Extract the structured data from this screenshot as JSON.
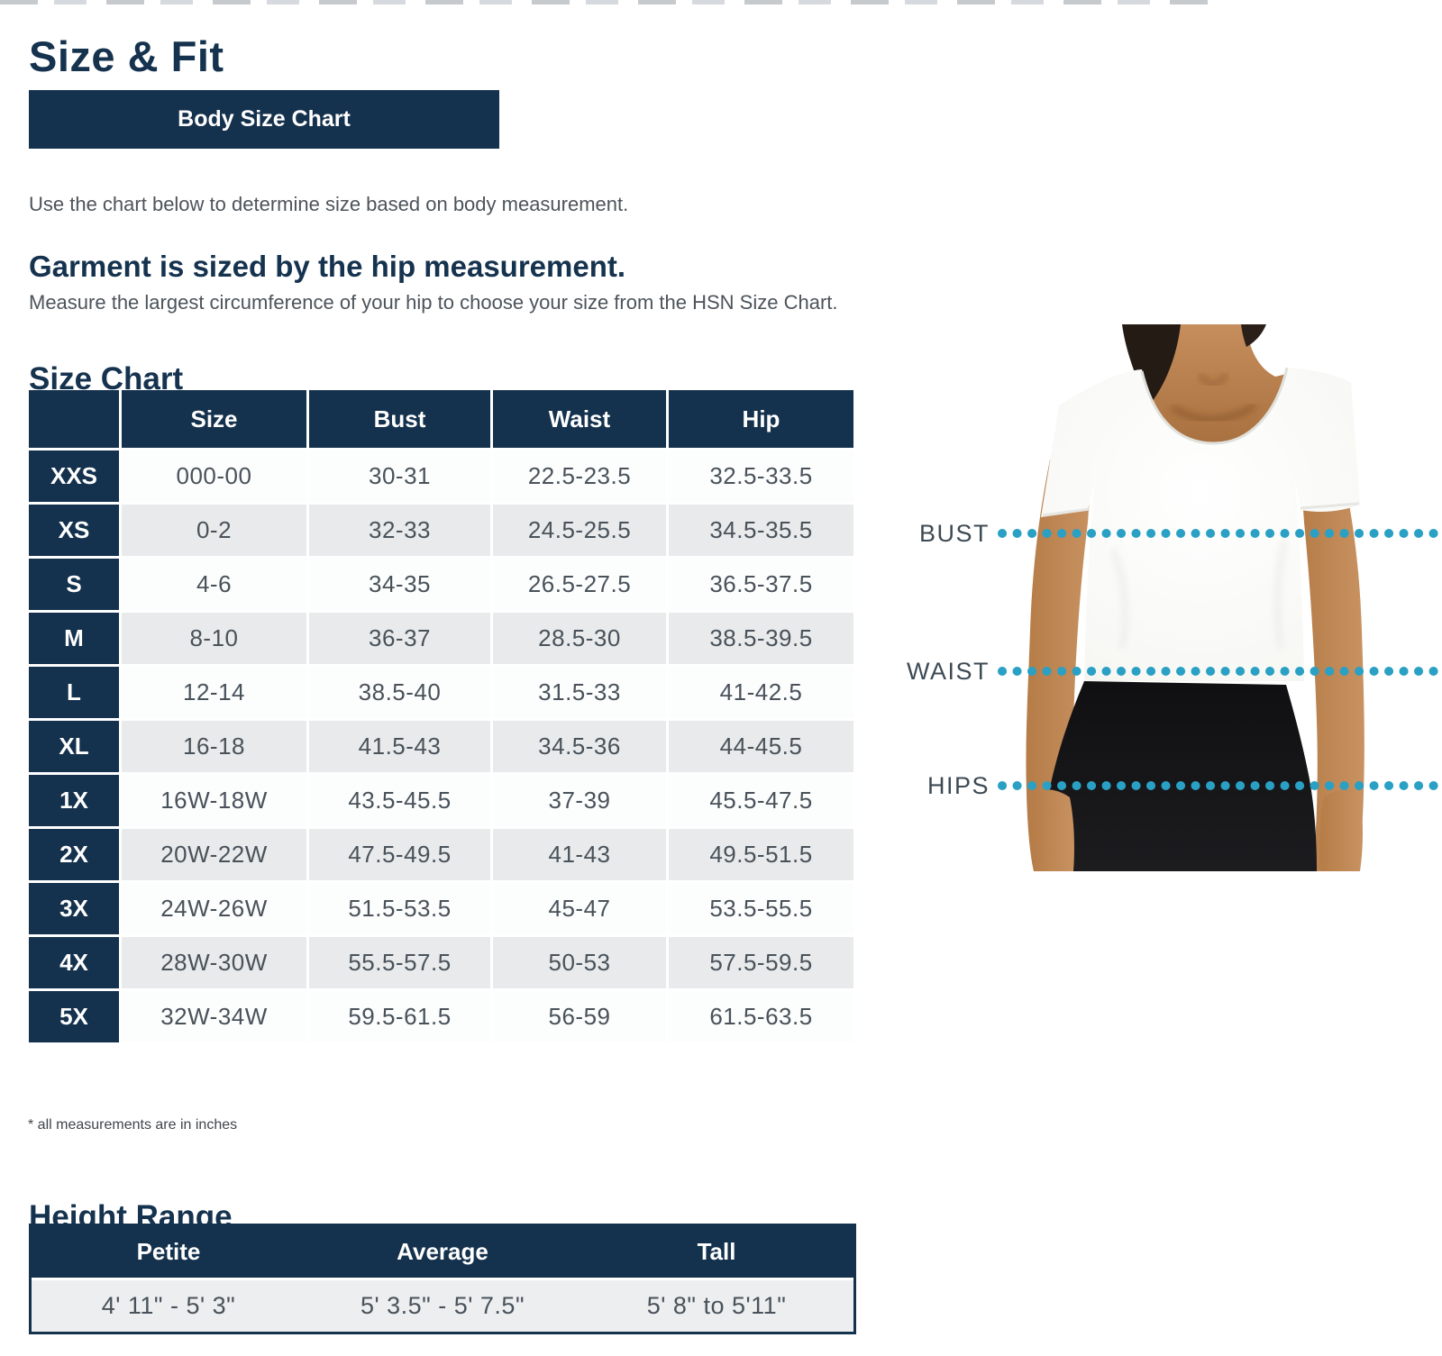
{
  "header": {
    "title": "Size & Fit"
  },
  "tabs": {
    "body_size_chart": "Body Size Chart"
  },
  "intro_text": "Use the chart below to determine size based on body measurement.",
  "garment_note": {
    "heading": "Garment is sized by the hip measurement.",
    "body": "Measure the largest circumference of your hip to choose your size from the HSN Size Chart."
  },
  "size_chart": {
    "heading": "Size Chart",
    "columns": [
      "",
      "Size",
      "Bust",
      "Waist",
      "Hip"
    ],
    "rows": [
      {
        "label": "XXS",
        "size": "000-00",
        "bust": "30-31",
        "waist": "22.5-23.5",
        "hip": "32.5-33.5"
      },
      {
        "label": "XS",
        "size": "0-2",
        "bust": "32-33",
        "waist": "24.5-25.5",
        "hip": "34.5-35.5"
      },
      {
        "label": "S",
        "size": "4-6",
        "bust": "34-35",
        "waist": "26.5-27.5",
        "hip": "36.5-37.5"
      },
      {
        "label": "M",
        "size": "8-10",
        "bust": "36-37",
        "waist": "28.5-30",
        "hip": "38.5-39.5"
      },
      {
        "label": "L",
        "size": "12-14",
        "bust": "38.5-40",
        "waist": "31.5-33",
        "hip": "41-42.5"
      },
      {
        "label": "XL",
        "size": "16-18",
        "bust": "41.5-43",
        "waist": "34.5-36",
        "hip": "44-45.5"
      },
      {
        "label": "1X",
        "size": "16W-18W",
        "bust": "43.5-45.5",
        "waist": "37-39",
        "hip": "45.5-47.5"
      },
      {
        "label": "2X",
        "size": "20W-22W",
        "bust": "47.5-49.5",
        "waist": "41-43",
        "hip": "49.5-51.5"
      },
      {
        "label": "3X",
        "size": "24W-26W",
        "bust": "51.5-53.5",
        "waist": "45-47",
        "hip": "53.5-55.5"
      },
      {
        "label": "4X",
        "size": "28W-30W",
        "bust": "55.5-57.5",
        "waist": "50-53",
        "hip": "57.5-59.5"
      },
      {
        "label": "5X",
        "size": "32W-34W",
        "bust": "59.5-61.5",
        "waist": "56-59",
        "hip": "61.5-63.5"
      }
    ],
    "footnote": "* all measurements are in inches"
  },
  "figure": {
    "bust_label": "BUST",
    "waist_label": "WAIST",
    "hips_label": "HIPS",
    "dot_color": "#2aa0c4"
  },
  "height_range": {
    "heading": "Height Range",
    "columns": [
      "Petite",
      "Average",
      "Tall"
    ],
    "values": [
      "4' 11\" - 5' 3\"",
      "5' 3.5\" - 5' 7.5\"",
      "5' 8\" to 5'11\""
    ]
  },
  "colors": {
    "navy": "#14314d",
    "teal": "#2aa0c4",
    "row_gray": "#e8eaeb"
  }
}
